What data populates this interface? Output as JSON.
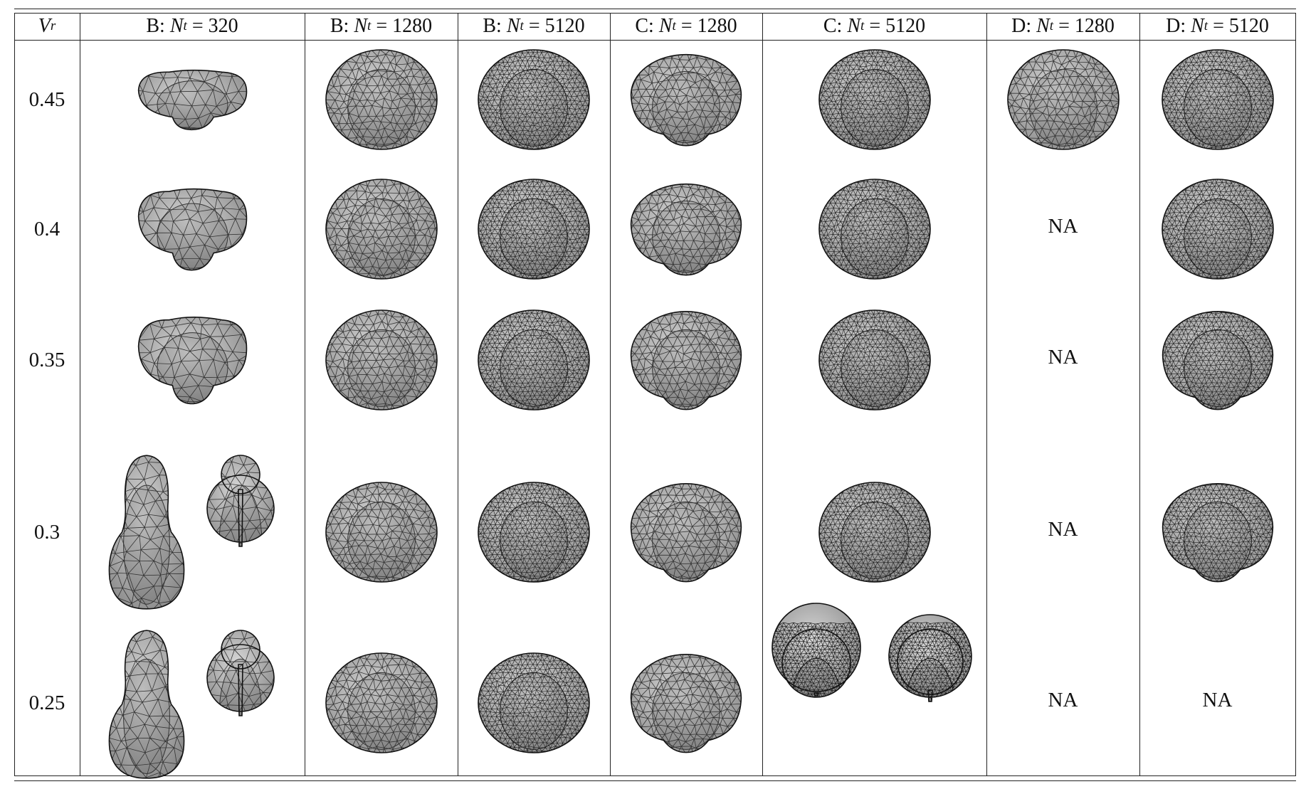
{
  "table": {
    "row_header_label": "V",
    "row_header_subscript": "r",
    "columns": [
      {
        "method": "B",
        "value": "320"
      },
      {
        "method": "B",
        "value": "1280"
      },
      {
        "method": "B",
        "value": "5120"
      },
      {
        "method": "C",
        "value": "1280"
      },
      {
        "method": "C",
        "value": "5120"
      },
      {
        "method": "D",
        "value": "1280"
      },
      {
        "method": "D",
        "value": "5120"
      }
    ],
    "col_prefix_symbol": "N",
    "col_prefix_subscript": "t",
    "rows": [
      {
        "vr": "0.45",
        "cells": [
          "shape",
          "shape",
          "shape",
          "shape",
          "shape",
          "shape",
          "shape"
        ]
      },
      {
        "vr": "0.4",
        "cells": [
          "shape",
          "shape",
          "shape",
          "shape",
          "shape",
          "NA",
          "shape"
        ]
      },
      {
        "vr": "0.35",
        "cells": [
          "shape",
          "shape",
          "shape",
          "shape",
          "shape",
          "NA",
          "shape"
        ]
      },
      {
        "vr": "0.3",
        "cells": [
          "shape-pair",
          "shape",
          "shape",
          "shape",
          "shape",
          "NA",
          "shape"
        ]
      },
      {
        "vr": "0.25",
        "cells": [
          "shape-pair",
          "shape",
          "shape",
          "shape",
          "shape-pair",
          "NA",
          "NA"
        ]
      }
    ],
    "na_label": "NA"
  }
}
